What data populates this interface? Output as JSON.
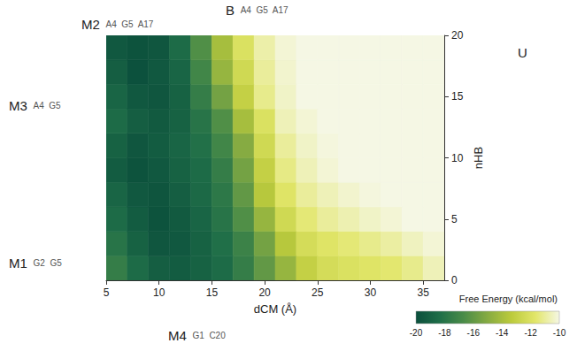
{
  "chart_data": {
    "type": "heatmap",
    "x_label": "dCM (Å)",
    "y_label": "nHB",
    "x": [
      6,
      8,
      10,
      12,
      14,
      16,
      18,
      20,
      22,
      24,
      26,
      28,
      30,
      32,
      34,
      36
    ],
    "y": [
      1,
      3,
      5,
      7,
      9,
      11,
      13,
      15,
      17,
      19
    ],
    "z": [
      [
        -17.5,
        -18.5,
        -19.2,
        -19.3,
        -19,
        -18.5,
        -17.5,
        -16,
        -14.5,
        -13,
        -12.3,
        -12,
        -11.8,
        -11.6,
        -11.2,
        -10.6
      ],
      [
        -18,
        -19,
        -19.6,
        -19.5,
        -19,
        -18.3,
        -17.2,
        -15.5,
        -13.5,
        -12.3,
        -11.8,
        -11.5,
        -11.2,
        -10.9,
        -10.5,
        -10.2
      ],
      [
        -18.5,
        -19.3,
        -19.8,
        -19.4,
        -18.8,
        -18,
        -16.5,
        -14.5,
        -12.5,
        -11.5,
        -11,
        -10.7,
        -10.4,
        -10.2,
        -10,
        -10
      ],
      [
        -18.8,
        -19.5,
        -19.7,
        -19.2,
        -18.6,
        -17.8,
        -16,
        -13.5,
        -11.8,
        -11,
        -10.6,
        -10.3,
        -10.1,
        -10,
        -10,
        -10
      ],
      [
        -19.3,
        -19.8,
        -19.5,
        -19,
        -18.5,
        -17.5,
        -15.5,
        -13,
        -11.3,
        -10.6,
        -10.2,
        -10,
        -10,
        -10,
        -10,
        -10
      ],
      [
        -19,
        -19.6,
        -19.3,
        -18.8,
        -18.2,
        -17,
        -15,
        -12.5,
        -11,
        -10.4,
        -10.1,
        -10,
        -10,
        -10,
        -10,
        -10
      ],
      [
        -18.5,
        -19.2,
        -19.4,
        -19,
        -18,
        -16.5,
        -14,
        -12,
        -10.6,
        -10.2,
        -10,
        -10,
        -10,
        -10,
        -10,
        -10
      ],
      [
        -18.8,
        -19.5,
        -19.6,
        -19,
        -17.5,
        -15.5,
        -13,
        -11.2,
        -10.4,
        -10,
        -10,
        -10,
        -10,
        -10,
        -10,
        -10
      ],
      [
        -19.2,
        -19.9,
        -19.5,
        -18.8,
        -17,
        -14.5,
        -12.5,
        -11,
        -10.3,
        -10,
        -10,
        -10,
        -10,
        -10,
        -10,
        -10
      ],
      [
        -19.5,
        -19.8,
        -19.6,
        -18.5,
        -16.5,
        -14,
        -12,
        -10.8,
        -10.2,
        -10,
        -10,
        -10,
        -10,
        -10,
        -10,
        -10
      ]
    ],
    "xlim": [
      5,
      37
    ],
    "xticks": [
      5,
      10,
      15,
      20,
      25,
      30,
      35
    ],
    "ylim": [
      0,
      20
    ],
    "yticks": [
      0,
      5,
      10,
      15,
      20
    ],
    "grid": false,
    "colorbar": {
      "title": "Free Energy (kcal/mol)",
      "clim": [
        -20,
        -10
      ],
      "ticks": [
        -20,
        -18,
        -16,
        -14,
        -12,
        -10
      ]
    },
    "annotations": [
      {
        "label": "B",
        "atoms": [
          "A4",
          "G5",
          "A17"
        ]
      },
      {
        "label": "M2",
        "atoms": [
          "A4",
          "G5",
          "A17"
        ]
      },
      {
        "label": "M3",
        "atoms": [
          "A4",
          "G5"
        ]
      },
      {
        "label": "M1",
        "atoms": [
          "G2",
          "G5"
        ]
      },
      {
        "label": "M4",
        "atoms": [
          "G1",
          "C20"
        ]
      },
      {
        "label": "U",
        "atoms": []
      }
    ]
  }
}
